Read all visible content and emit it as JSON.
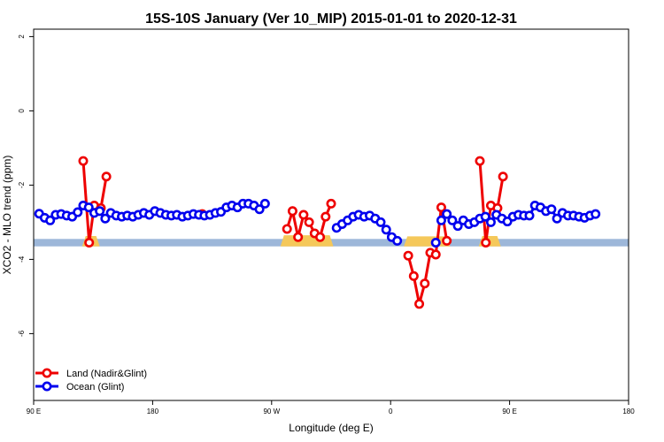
{
  "chart_data": {
    "type": "line",
    "title": "15S-10S January (Ver 10_MIP)   2015-01-01 to 2020-12-31",
    "xlabel": "Longitude (deg E)",
    "ylabel": "XCO2 - MLO trend (ppm)",
    "xlim": [
      -90,
      180
    ],
    "ylim": [
      -7.8,
      2.2
    ],
    "x_ticks": [
      {
        "value": -90,
        "label": "90 E"
      },
      {
        "value": -36,
        "label": "180"
      },
      {
        "value": 18,
        "label": "90 W"
      },
      {
        "value": 72,
        "label": "0"
      },
      {
        "value": 126,
        "label": "90 E"
      },
      {
        "value": 180,
        "label": "180"
      }
    ],
    "y_ticks": [
      {
        "value": 2,
        "label": "2"
      },
      {
        "value": 0,
        "label": "0"
      },
      {
        "value": -2,
        "label": "-2"
      },
      {
        "value": -4,
        "label": "-4"
      },
      {
        "value": -6,
        "label": "-6"
      }
    ],
    "grid": false,
    "legend_position": "bottom-left",
    "band": {
      "y_low": -3.65,
      "y_high": -3.45,
      "color": "#9db7d9",
      "land_color": "#f5c85a"
    },
    "series": [
      {
        "name": "Land (Nadir&Glint)",
        "color": "#ee0000",
        "segments": [
          [
            [
              -67.5,
              -1.35
            ],
            [
              -64.8,
              -3.55
            ],
            [
              -62.5,
              -2.55
            ],
            [
              -59.5,
              -2.62
            ],
            [
              -57,
              -1.77
            ]
          ],
          [
            [
              -13.5,
              -2.78
            ]
          ],
          [
            [
              25,
              -3.18
            ],
            [
              27.5,
              -2.7
            ],
            [
              30,
              -3.4
            ],
            [
              32.5,
              -2.8
            ],
            [
              35,
              -3.0
            ],
            [
              37.5,
              -3.3
            ],
            [
              40,
              -3.4
            ],
            [
              42.5,
              -2.85
            ],
            [
              45,
              -2.5
            ]
          ],
          [
            [
              80,
              -3.9
            ],
            [
              82.5,
              -4.45
            ],
            [
              85,
              -5.2
            ],
            [
              87.5,
              -4.65
            ],
            [
              90,
              -3.82
            ],
            [
              92.5,
              -3.87
            ],
            [
              95,
              -2.6
            ],
            [
              97.5,
              -3.5
            ]
          ],
          [
            [
              112.5,
              -1.35
            ],
            [
              115.2,
              -3.55
            ],
            [
              117.5,
              -2.55
            ],
            [
              120.5,
              -2.62
            ],
            [
              123,
              -1.77
            ]
          ]
        ]
      },
      {
        "name": "Ocean (Glint)",
        "color": "#0000ee",
        "segments": [
          [
            [
              -87.5,
              -2.77
            ],
            [
              -85,
              -2.88
            ],
            [
              -82.5,
              -2.95
            ],
            [
              -80,
              -2.8
            ],
            [
              -77.5,
              -2.78
            ],
            [
              -75,
              -2.82
            ],
            [
              -72.5,
              -2.85
            ],
            [
              -70,
              -2.73
            ],
            [
              -67.5,
              -2.55
            ],
            [
              -65,
              -2.6
            ],
            [
              -62.5,
              -2.75
            ],
            [
              -60,
              -2.7
            ],
            [
              -57.5,
              -2.9
            ],
            [
              -55,
              -2.75
            ],
            [
              -52.5,
              -2.82
            ],
            [
              -50,
              -2.85
            ],
            [
              -47.5,
              -2.82
            ],
            [
              -45,
              -2.85
            ],
            [
              -42.5,
              -2.8
            ],
            [
              -40,
              -2.75
            ],
            [
              -37.5,
              -2.8
            ],
            [
              -35,
              -2.7
            ],
            [
              -32.5,
              -2.75
            ],
            [
              -30,
              -2.8
            ],
            [
              -27.5,
              -2.82
            ],
            [
              -25,
              -2.8
            ],
            [
              -22.5,
              -2.85
            ],
            [
              -20,
              -2.82
            ],
            [
              -17.5,
              -2.78
            ],
            [
              -15,
              -2.8
            ],
            [
              -12.5,
              -2.82
            ],
            [
              -10,
              -2.8
            ],
            [
              -7.5,
              -2.75
            ],
            [
              -5,
              -2.72
            ],
            [
              -2.5,
              -2.6
            ],
            [
              0,
              -2.55
            ],
            [
              2.5,
              -2.6
            ],
            [
              5,
              -2.5
            ],
            [
              7.5,
              -2.5
            ],
            [
              10,
              -2.55
            ],
            [
              12.5,
              -2.65
            ],
            [
              15,
              -2.5
            ]
          ],
          [
            [
              47.5,
              -3.15
            ],
            [
              50,
              -3.05
            ],
            [
              52.5,
              -2.95
            ],
            [
              55,
              -2.85
            ],
            [
              57.5,
              -2.8
            ],
            [
              60,
              -2.85
            ],
            [
              62.5,
              -2.82
            ],
            [
              65,
              -2.9
            ],
            [
              67.5,
              -3.0
            ],
            [
              70,
              -3.2
            ],
            [
              72.5,
              -3.4
            ],
            [
              75,
              -3.5
            ]
          ],
          [
            [
              92.5,
              -3.55
            ]
          ],
          [
            [
              95,
              -2.95
            ],
            [
              97.5,
              -2.78
            ],
            [
              100,
              -2.95
            ],
            [
              102.5,
              -3.1
            ],
            [
              105,
              -2.95
            ],
            [
              107.5,
              -3.05
            ],
            [
              110,
              -3.0
            ],
            [
              112.5,
              -2.9
            ],
            [
              115,
              -2.85
            ],
            [
              117.5,
              -3.0
            ],
            [
              120,
              -2.8
            ],
            [
              122.5,
              -2.9
            ],
            [
              125,
              -2.98
            ],
            [
              127.5,
              -2.85
            ],
            [
              130,
              -2.8
            ],
            [
              132.5,
              -2.82
            ],
            [
              135,
              -2.82
            ],
            [
              137.5,
              -2.55
            ],
            [
              140,
              -2.6
            ],
            [
              142.5,
              -2.7
            ],
            [
              145,
              -2.65
            ],
            [
              147.5,
              -2.9
            ],
            [
              150,
              -2.75
            ],
            [
              152.5,
              -2.82
            ],
            [
              155,
              -2.82
            ],
            [
              157.5,
              -2.85
            ],
            [
              160,
              -2.88
            ],
            [
              162.5,
              -2.82
            ],
            [
              165,
              -2.78
            ]
          ]
        ]
      }
    ]
  }
}
